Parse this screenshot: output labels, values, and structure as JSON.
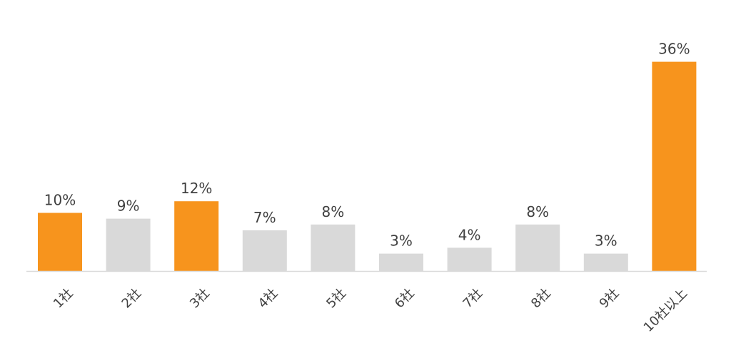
{
  "chart_data": {
    "type": "bar",
    "categories": [
      "1社",
      "2社",
      "3社",
      "4社",
      "5社",
      "6社",
      "7社",
      "8社",
      "9社",
      "10社以上"
    ],
    "values": [
      10,
      9,
      12,
      7,
      8,
      3,
      4,
      8,
      3,
      36
    ],
    "value_labels": [
      "10%",
      "9%",
      "12%",
      "7%",
      "8%",
      "3%",
      "4%",
      "8%",
      "3%",
      "36%"
    ],
    "highlighted": [
      true,
      false,
      true,
      false,
      false,
      false,
      false,
      false,
      false,
      true
    ],
    "unit": "%",
    "title": "",
    "xlabel": "",
    "ylabel": "",
    "ylim": [
      0,
      38
    ],
    "grid": false,
    "legend": "none",
    "colors": {
      "highlight": "#F7941D",
      "default": "#D9D9D9",
      "baseline": "#D9D9D9",
      "text": "#404040"
    }
  }
}
